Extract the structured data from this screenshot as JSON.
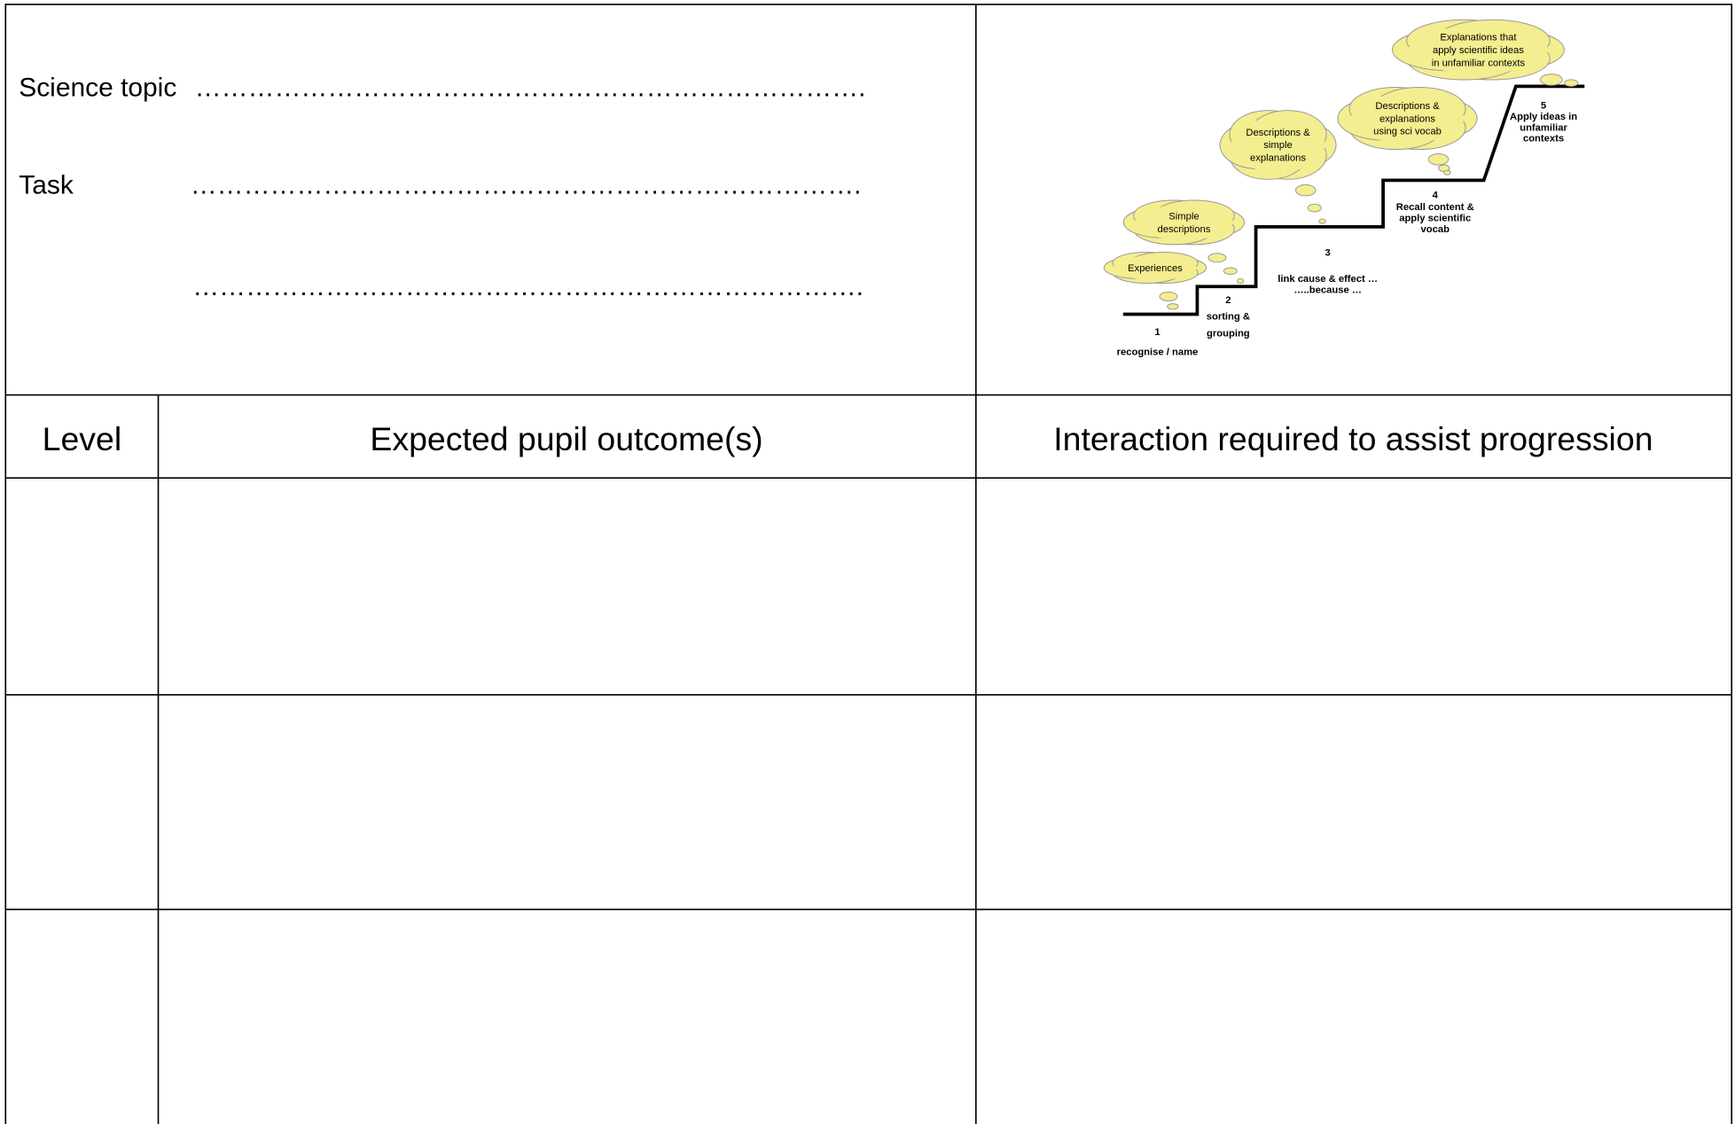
{
  "form": {
    "science_topic_label": "Science topic",
    "topic_dots": "………………………………………………………………….",
    "task_label": "Task",
    "task_dots_1": "………………………………………………………………….",
    "task_dots_2": "…………………………………………………………………."
  },
  "diagram": {
    "clouds": [
      [
        "Experiences"
      ],
      [
        "Simple",
        "descriptions"
      ],
      [
        "Descriptions &",
        "simple",
        "explanations"
      ],
      [
        "Descriptions &",
        "explanations",
        "using sci vocab"
      ],
      [
        "Explanations that",
        "apply scientific ideas",
        "in unfamiliar contexts"
      ]
    ],
    "steps": [
      {
        "number": "1",
        "label": [
          "recognise / name"
        ]
      },
      {
        "number": "2",
        "label": [
          "sorting &",
          "grouping"
        ]
      },
      {
        "number": "3",
        "label": [
          "link cause & effect …",
          "…..because …"
        ]
      },
      {
        "number": "4",
        "label": [
          "Recall content &",
          "apply scientific",
          "vocab"
        ]
      },
      {
        "number": "5",
        "label": [
          "Apply ideas in",
          "unfamiliar",
          "contexts"
        ]
      }
    ]
  },
  "table": {
    "headers": [
      "Level",
      "Expected pupil outcome(s)",
      "Interaction required to assist progression"
    ]
  }
}
